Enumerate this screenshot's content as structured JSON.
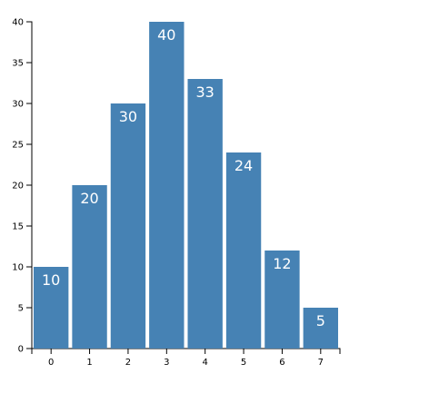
{
  "chart_data": {
    "type": "bar",
    "categories": [
      "0",
      "1",
      "2",
      "3",
      "4",
      "5",
      "6",
      "7"
    ],
    "values": [
      10,
      20,
      30,
      40,
      33,
      24,
      12,
      5
    ],
    "title": "",
    "xlabel": "",
    "ylabel": "",
    "ylim": [
      0,
      40
    ],
    "y_ticks": [
      "0",
      "5",
      "10",
      "15",
      "20",
      "25",
      "30",
      "35",
      "40"
    ],
    "grid": false,
    "data_labels": true,
    "bar_color": "#4682b4",
    "label_color": "#ffffff"
  }
}
